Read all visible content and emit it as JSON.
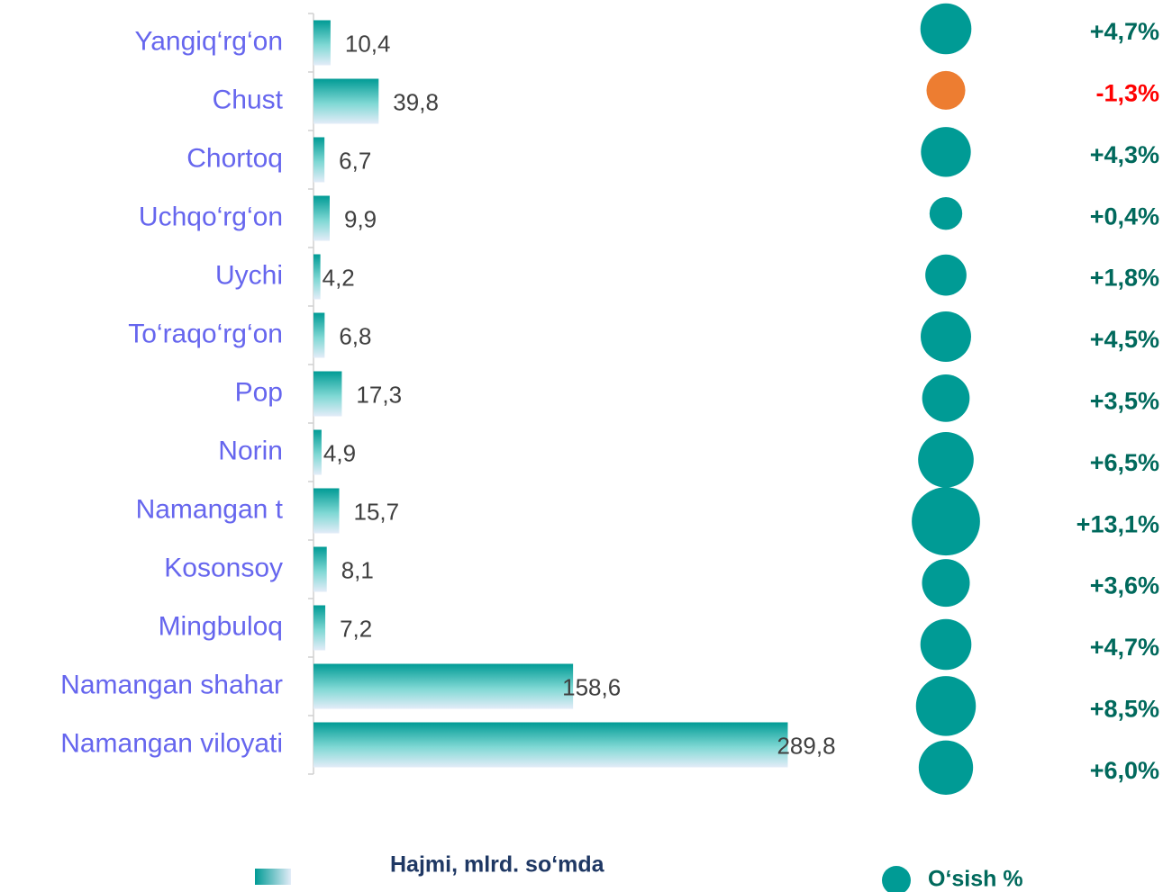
{
  "chart_data": {
    "type": "bar",
    "categories": [
      "Yangiq‘rg‘on",
      "Chust",
      "Chortoq",
      "Uchqo‘rg‘on",
      "Uychi",
      "To‘raqo‘rg‘on",
      "Pop",
      "Norin",
      "Namangan t",
      "Kosonsoy",
      "Mingbuloq",
      "Namangan shahar",
      "Namangan viloyati"
    ],
    "xlim": [
      0,
      300
    ],
    "series": [
      {
        "name": "Hajmi, mlrd. so‘mda",
        "color": "#009b95",
        "values": [
          10.4,
          39.8,
          6.7,
          9.9,
          4.2,
          6.8,
          17.3,
          4.9,
          15.7,
          8.1,
          7.2,
          158.6,
          289.8
        ],
        "value_labels": [
          "10,4",
          "39,8",
          "6,7",
          "9,9",
          "4,2",
          "6,8",
          "17,3",
          "4,9",
          "15,7",
          "8,1",
          "7,2",
          "158,6",
          "289,8"
        ]
      },
      {
        "name": "O‘sish %",
        "type": "bubble",
        "color": "#009b95",
        "negative_color": "#ed7d31",
        "label_color": "#00695c",
        "negative_label_color": "#ff0000",
        "values": [
          4.7,
          -1.3,
          4.3,
          0.4,
          1.8,
          4.5,
          3.5,
          6.5,
          13.1,
          3.6,
          4.7,
          8.5,
          6.0
        ],
        "value_labels": [
          "+4,7%",
          "-1,3%",
          "+4,3%",
          "+0,4%",
          "+1,8%",
          "+4,5%",
          "+3,5%",
          "+6,5%",
          "+13,1%",
          "+3,6%",
          "+4,7%",
          "+8,5%",
          "+6,0%"
        ]
      }
    ]
  }
}
